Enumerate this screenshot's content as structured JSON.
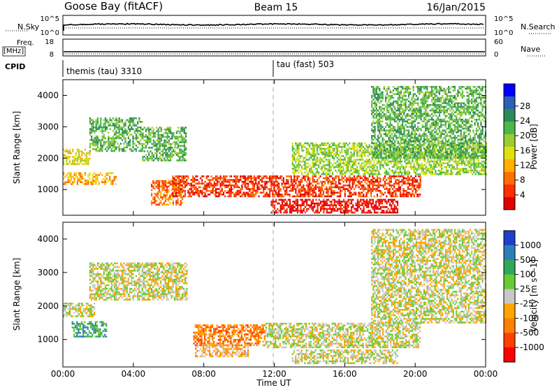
{
  "header": {
    "station": "Goose Bay (fitACF)",
    "beam": "Beam 15",
    "date": "16/Jan/2015"
  },
  "noise_panel": {
    "left_label": "N.Sky",
    "right_label": "N.Search",
    "left_ticks": [
      "10^5",
      "10^0"
    ],
    "right_ticks": [
      "10^5",
      "10^0"
    ]
  },
  "freq_panel": {
    "left_label_1": "Freq.",
    "left_label_2": "[MHz]",
    "right_label": "Nave",
    "left_ticks": [
      "18",
      "8"
    ],
    "right_ticks": [
      "60",
      "0"
    ]
  },
  "cpid_panel": {
    "label": "CPID",
    "programs": [
      {
        "name": "themis (tau) 3310",
        "start_hour": 0
      },
      {
        "name": "tau (fast) 503",
        "start_hour": 12
      }
    ]
  },
  "chart_data": [
    {
      "type": "heatmap",
      "title": "",
      "xlabel": "Time UT",
      "ylabel": "Slant Range [km]",
      "xlim": [
        0,
        24
      ],
      "ylim": [
        180,
        4500
      ],
      "xticks": [
        "00:00",
        "04:00",
        "08:00",
        "12:00",
        "16:00",
        "20:00",
        "00:00"
      ],
      "yticks": [
        1000,
        2000,
        3000,
        4000
      ],
      "colorbar": {
        "label": "Power [dB]",
        "ticks": [
          "4",
          "8",
          "12",
          "16",
          "20",
          "24",
          "28"
        ],
        "colors": [
          "#0000ff",
          "#2c5fb5",
          "#2f8a5a",
          "#4bb84b",
          "#9acd32",
          "#e0e010",
          "#ffb000",
          "#ff7000",
          "#ff3000",
          "#e00000"
        ]
      },
      "regions": [
        {
          "name": "band-early-low",
          "t0": 0.0,
          "t1": 3.0,
          "r0": 1150,
          "r1": 1550,
          "level": 6
        },
        {
          "name": "band-early-mid",
          "t0": 0.0,
          "t1": 1.5,
          "r0": 1800,
          "r1": 2300,
          "level": 5
        },
        {
          "name": "arc-rising",
          "t0": 1.5,
          "t1": 4.5,
          "r0": 2200,
          "r1": 3300,
          "level": 3
        },
        {
          "name": "arc-falling",
          "t0": 4.5,
          "t1": 7.0,
          "r0": 1900,
          "r1": 3000,
          "level": 3
        },
        {
          "name": "dip-patches",
          "t0": 5.0,
          "t1": 6.8,
          "r0": 500,
          "r1": 1300,
          "level": 7
        },
        {
          "name": "main-band",
          "t0": 6.2,
          "t1": 20.3,
          "r0": 800,
          "r1": 1450,
          "level": 8
        },
        {
          "name": "lower-arc",
          "t0": 11.8,
          "t1": 19.0,
          "r0": 250,
          "r1": 700,
          "level": 9
        },
        {
          "name": "morning-ripples",
          "t0": 13.0,
          "t1": 24.0,
          "r0": 1500,
          "r1": 2500,
          "level": 4
        },
        {
          "name": "late-spikes",
          "t0": 17.5,
          "t1": 24.0,
          "r0": 2000,
          "r1": 4300,
          "level": 3
        }
      ]
    },
    {
      "type": "heatmap",
      "title": "",
      "xlabel": "Time UT",
      "ylabel": "Slant Range [km]",
      "xlim": [
        0,
        24
      ],
      "ylim": [
        180,
        4500
      ],
      "xticks": [
        "00:00",
        "04:00",
        "08:00",
        "12:00",
        "16:00",
        "20:00",
        "00:00"
      ],
      "yticks": [
        1000,
        2000,
        3000,
        4000
      ],
      "colorbar": {
        "label": "Velocity [m s^-1]",
        "ticks": [
          "1000",
          "500",
          "100",
          "25",
          "-25",
          "-100",
          "-500",
          "-1000"
        ],
        "colors": [
          "#1e40c8",
          "#2e7dbb",
          "#2ea85a",
          "#66cc33",
          "#c8c8c8",
          "#ffa500",
          "#ff8000",
          "#ff4000",
          "#ff0000"
        ]
      },
      "regions": [
        {
          "name": "gs-band-early",
          "t0": 0.0,
          "t1": 1.8,
          "r0": 1700,
          "r1": 2100,
          "level": 4
        },
        {
          "name": "gs-arc",
          "t0": 1.5,
          "t1": 7.0,
          "r0": 2200,
          "r1": 3300,
          "level": 4
        },
        {
          "name": "early-green",
          "t0": 0.5,
          "t1": 2.5,
          "r0": 1100,
          "r1": 1550,
          "level": 2
        },
        {
          "name": "orange-block",
          "t0": 7.4,
          "t1": 11.5,
          "r0": 850,
          "r1": 1450,
          "level": 6
        },
        {
          "name": "orange-lower",
          "t0": 7.5,
          "t1": 10.5,
          "r0": 500,
          "r1": 850,
          "level": 5
        },
        {
          "name": "gs-main",
          "t0": 11.5,
          "t1": 20.3,
          "r0": 750,
          "r1": 1500,
          "level": 4
        },
        {
          "name": "gs-lower",
          "t0": 13.0,
          "t1": 19.0,
          "r0": 300,
          "r1": 700,
          "level": 4
        },
        {
          "name": "late-spikes",
          "t0": 17.5,
          "t1": 24.0,
          "r0": 1500,
          "r1": 4300,
          "level": 4
        }
      ]
    }
  ]
}
